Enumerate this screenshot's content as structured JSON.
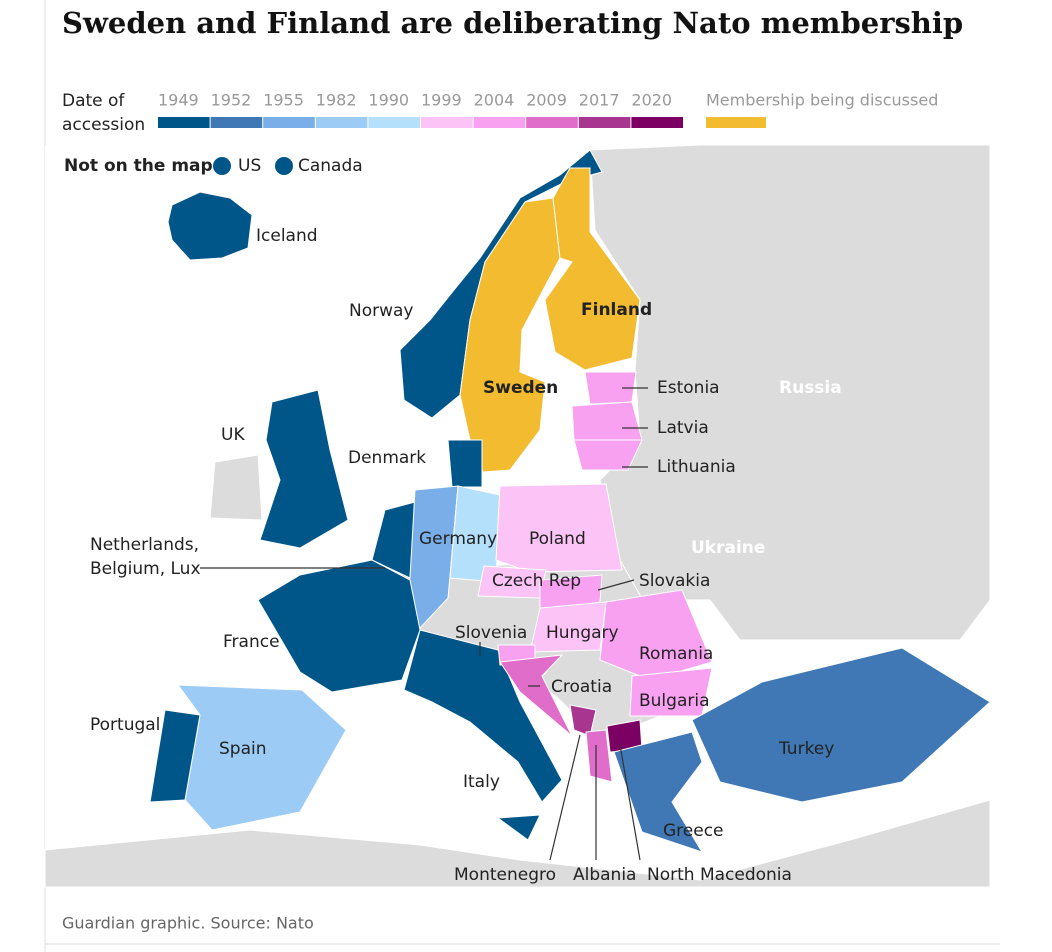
{
  "title": "Sweden and Finland are deliberating Nato membership",
  "legend": {
    "label_lines": [
      "Date of",
      "accession"
    ],
    "years": [
      {
        "label": "1949",
        "color": "#005689"
      },
      {
        "label": "1952",
        "color": "#3f78b5"
      },
      {
        "label": "1955",
        "color": "#7aaee8"
      },
      {
        "label": "1982",
        "color": "#9ccbf5"
      },
      {
        "label": "1990",
        "color": "#b5e0fc"
      },
      {
        "label": "1999",
        "color": "#fbc3f6"
      },
      {
        "label": "2004",
        "color": "#f7a1f0"
      },
      {
        "label": "2009",
        "color": "#e16dcb"
      },
      {
        "label": "2017",
        "color": "#a8358f"
      },
      {
        "label": "2020",
        "color": "#7c0063"
      }
    ],
    "discussed": {
      "label": "Membership being discussed",
      "color": "#f2bb30"
    }
  },
  "not_on_map": {
    "label": "Not on the map",
    "color": "#005689",
    "items": [
      "US",
      "Canada"
    ]
  },
  "countries": [
    {
      "name": "Iceland",
      "color": "#005689"
    },
    {
      "name": "Norway",
      "color": "#005689"
    },
    {
      "name": "Sweden",
      "color": "#f2bb30"
    },
    {
      "name": "Finland",
      "color": "#f2bb30"
    },
    {
      "name": "Estonia",
      "color": "#f7a1f0"
    },
    {
      "name": "Latvia",
      "color": "#f7a1f0"
    },
    {
      "name": "Lithuania",
      "color": "#f7a1f0"
    },
    {
      "name": "Denmark",
      "color": "#005689"
    },
    {
      "name": "UK",
      "color": "#005689"
    },
    {
      "label_lines": [
        "Netherlands,",
        "Belgium, Lux"
      ],
      "color": "#005689"
    },
    {
      "name": "Germany",
      "colors": [
        "#7aaee8",
        "#b5e0fc"
      ]
    },
    {
      "name": "France",
      "color": "#005689"
    },
    {
      "name": "Spain",
      "color": "#9ccbf5"
    },
    {
      "name": "Portugal",
      "color": "#005689"
    },
    {
      "name": "Italy",
      "color": "#005689"
    },
    {
      "name": "Poland",
      "color": "#fbc3f6"
    },
    {
      "name": "Czech Rep",
      "color": "#fbc3f6"
    },
    {
      "name": "Slovakia",
      "color": "#f7a1f0"
    },
    {
      "name": "Hungary",
      "color": "#fbc3f6"
    },
    {
      "name": "Romania",
      "color": "#f7a1f0"
    },
    {
      "name": "Bulgaria",
      "color": "#f7a1f0"
    },
    {
      "name": "Slovenia",
      "color": "#f7a1f0"
    },
    {
      "name": "Croatia",
      "color": "#e16dcb"
    },
    {
      "name": "Montenegro",
      "color": "#a8358f"
    },
    {
      "name": "Albania",
      "color": "#e16dcb"
    },
    {
      "name": "North Macedonia",
      "color": "#7c0063"
    },
    {
      "name": "Greece",
      "color": "#3f78b5"
    },
    {
      "name": "Turkey",
      "color": "#3f78b5"
    }
  ],
  "other_labels": [
    "Russia",
    "Ukraine"
  ],
  "source": "Guardian graphic. Source: Nato"
}
